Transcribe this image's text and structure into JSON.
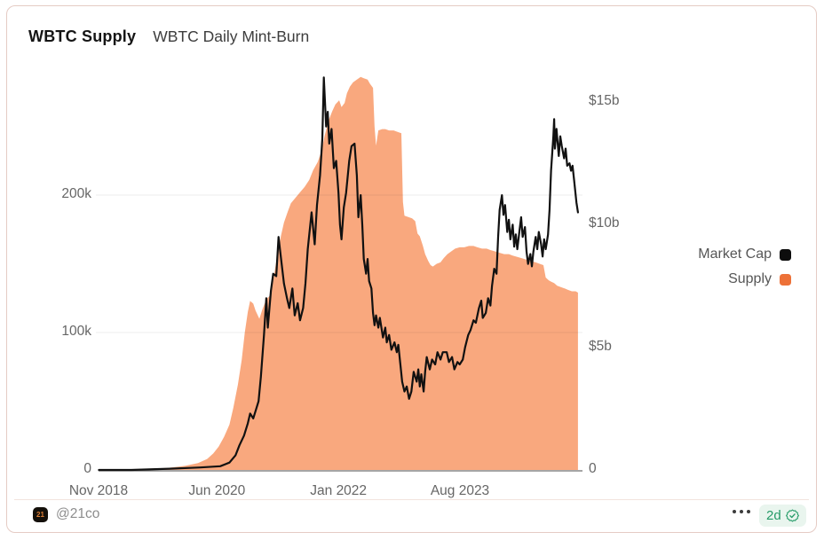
{
  "card": {
    "title": "WBTC Supply",
    "subtitle": "WBTC Daily Mint-Burn"
  },
  "legend": [
    {
      "label": "Market Cap",
      "color": "#0d0d0d"
    },
    {
      "label": "Supply",
      "color": "#ed7138"
    }
  ],
  "footer": {
    "avatar_text": "21",
    "handle": "@21co",
    "age": "2d"
  },
  "chart_data": {
    "type": "line+area",
    "title": "WBTC Daily Mint-Burn",
    "grid": "horizontal-left-axis-only",
    "legend_position": "right",
    "x_axis": {
      "kind": "time",
      "range_years": [
        2018.875,
        2025.12
      ],
      "ticks": [
        {
          "year": 2018.875,
          "label": "Nov 2018"
        },
        {
          "year": 2020.417,
          "label": "Jun 2020"
        },
        {
          "year": 2022.0,
          "label": "Jan 2022"
        },
        {
          "year": 2023.583,
          "label": "Aug 2023"
        }
      ]
    },
    "y_left": {
      "unit": "BTC (thousands)",
      "range": [
        0,
        286
      ],
      "ticks": [
        {
          "v": 0,
          "label": "0"
        },
        {
          "v": 100,
          "label": "100k"
        },
        {
          "v": 200,
          "label": "200k"
        }
      ]
    },
    "y_right": {
      "unit": "USD billions",
      "range": [
        0,
        16
      ],
      "ticks": [
        {
          "v": 0,
          "label": "0"
        },
        {
          "v": 5,
          "label": "$5b"
        },
        {
          "v": 10,
          "label": "$10b"
        },
        {
          "v": 15,
          "label": "$15b"
        }
      ]
    },
    "series": [
      {
        "name": "Supply",
        "type": "area",
        "axis": "left",
        "fill_color": "#f9a87e",
        "legend_color": "#ed7138",
        "points": [
          [
            2018.88,
            0.2
          ],
          [
            2019.42,
            0.7
          ],
          [
            2019.77,
            1.5
          ],
          [
            2020.0,
            3
          ],
          [
            2020.17,
            5
          ],
          [
            2020.29,
            8
          ],
          [
            2020.37,
            12
          ],
          [
            2020.44,
            17
          ],
          [
            2020.51,
            24
          ],
          [
            2020.58,
            33
          ],
          [
            2020.63,
            45
          ],
          [
            2020.69,
            62
          ],
          [
            2020.74,
            80
          ],
          [
            2020.78,
            100
          ],
          [
            2020.82,
            115
          ],
          [
            2020.85,
            123
          ],
          [
            2020.89,
            121
          ],
          [
            2020.92,
            116
          ],
          [
            2020.97,
            110
          ],
          [
            2021.01,
            117
          ],
          [
            2021.06,
            124
          ],
          [
            2021.11,
            127
          ],
          [
            2021.15,
            138
          ],
          [
            2021.2,
            155
          ],
          [
            2021.25,
            170
          ],
          [
            2021.29,
            180
          ],
          [
            2021.34,
            188
          ],
          [
            2021.38,
            194
          ],
          [
            2021.44,
            198
          ],
          [
            2021.5,
            202
          ],
          [
            2021.56,
            206
          ],
          [
            2021.62,
            211
          ],
          [
            2021.67,
            218
          ],
          [
            2021.73,
            224
          ],
          [
            2021.78,
            232
          ],
          [
            2021.82,
            243
          ],
          [
            2021.87,
            254
          ],
          [
            2021.92,
            261
          ],
          [
            2021.96,
            266
          ],
          [
            2022.01,
            269
          ],
          [
            2022.04,
            264
          ],
          [
            2022.08,
            267
          ],
          [
            2022.11,
            274
          ],
          [
            2022.15,
            279
          ],
          [
            2022.19,
            282
          ],
          [
            2022.24,
            284
          ],
          [
            2022.29,
            286
          ],
          [
            2022.33,
            285
          ],
          [
            2022.38,
            284
          ],
          [
            2022.41,
            281
          ],
          [
            2022.45,
            278
          ],
          [
            2022.47,
            250
          ],
          [
            2022.49,
            236
          ],
          [
            2022.52,
            247
          ],
          [
            2022.57,
            248
          ],
          [
            2022.61,
            248
          ],
          [
            2022.66,
            247
          ],
          [
            2022.72,
            247
          ],
          [
            2022.77,
            246
          ],
          [
            2022.82,
            245
          ],
          [
            2022.84,
            195
          ],
          [
            2022.86,
            185
          ],
          [
            2022.91,
            184
          ],
          [
            2022.96,
            183
          ],
          [
            2023.0,
            181
          ],
          [
            2023.03,
            172
          ],
          [
            2023.06,
            170
          ],
          [
            2023.1,
            163
          ],
          [
            2023.13,
            157
          ],
          [
            2023.17,
            152
          ],
          [
            2023.2,
            149
          ],
          [
            2023.23,
            148
          ],
          [
            2023.28,
            150
          ],
          [
            2023.33,
            151
          ],
          [
            2023.37,
            154
          ],
          [
            2023.42,
            157
          ],
          [
            2023.47,
            159
          ],
          [
            2023.52,
            161
          ],
          [
            2023.58,
            162
          ],
          [
            2023.64,
            162
          ],
          [
            2023.7,
            163
          ],
          [
            2023.76,
            163
          ],
          [
            2023.81,
            162
          ],
          [
            2023.87,
            161
          ],
          [
            2023.93,
            161
          ],
          [
            2023.98,
            160
          ],
          [
            2024.04,
            159
          ],
          [
            2024.1,
            158
          ],
          [
            2024.16,
            157
          ],
          [
            2024.22,
            157
          ],
          [
            2024.27,
            156
          ],
          [
            2024.33,
            155
          ],
          [
            2024.39,
            154
          ],
          [
            2024.45,
            153
          ],
          [
            2024.51,
            152
          ],
          [
            2024.57,
            151
          ],
          [
            2024.62,
            150
          ],
          [
            2024.67,
            149
          ],
          [
            2024.7,
            140
          ],
          [
            2024.74,
            138
          ],
          [
            2024.77,
            137
          ],
          [
            2024.81,
            136
          ],
          [
            2024.85,
            134
          ],
          [
            2024.9,
            133
          ],
          [
            2024.95,
            132
          ],
          [
            2024.99,
            131
          ],
          [
            2025.04,
            130
          ],
          [
            2025.09,
            130
          ],
          [
            2025.12,
            129
          ]
        ]
      },
      {
        "name": "Market Cap",
        "type": "line",
        "axis": "right",
        "line_color": "#111111",
        "legend_color": "#0d0d0d",
        "points": [
          [
            2018.88,
            0
          ],
          [
            2019.3,
            0
          ],
          [
            2019.8,
            0.05
          ],
          [
            2020.2,
            0.1
          ],
          [
            2020.46,
            0.15
          ],
          [
            2020.58,
            0.3
          ],
          [
            2020.66,
            0.6
          ],
          [
            2020.71,
            1.0
          ],
          [
            2020.77,
            1.4
          ],
          [
            2020.82,
            1.9
          ],
          [
            2020.85,
            2.3
          ],
          [
            2020.89,
            2.1
          ],
          [
            2020.92,
            2.4
          ],
          [
            2020.96,
            2.8
          ],
          [
            2020.99,
            3.8
          ],
          [
            2021.03,
            5.5
          ],
          [
            2021.06,
            7.0
          ],
          [
            2021.08,
            5.8
          ],
          [
            2021.12,
            7.3
          ],
          [
            2021.15,
            8.0
          ],
          [
            2021.19,
            7.9
          ],
          [
            2021.22,
            9.5
          ],
          [
            2021.26,
            8.4
          ],
          [
            2021.29,
            7.6
          ],
          [
            2021.33,
            7.0
          ],
          [
            2021.36,
            6.6
          ],
          [
            2021.4,
            7.4
          ],
          [
            2021.43,
            6.3
          ],
          [
            2021.47,
            6.8
          ],
          [
            2021.5,
            6.1
          ],
          [
            2021.54,
            6.6
          ],
          [
            2021.57,
            7.6
          ],
          [
            2021.6,
            9.0
          ],
          [
            2021.65,
            10.5
          ],
          [
            2021.69,
            9.2
          ],
          [
            2021.72,
            10.8
          ],
          [
            2021.76,
            12.0
          ],
          [
            2021.79,
            13.5
          ],
          [
            2021.81,
            16.0
          ],
          [
            2021.84,
            14.0
          ],
          [
            2021.86,
            14.6
          ],
          [
            2021.88,
            13.3
          ],
          [
            2021.91,
            13.9
          ],
          [
            2021.94,
            12.3
          ],
          [
            2021.97,
            12.6
          ],
          [
            2022.0,
            11.3
          ],
          [
            2022.02,
            10.0
          ],
          [
            2022.04,
            9.4
          ],
          [
            2022.07,
            10.7
          ],
          [
            2022.1,
            11.3
          ],
          [
            2022.14,
            12.6
          ],
          [
            2022.17,
            13.2
          ],
          [
            2022.21,
            13.3
          ],
          [
            2022.24,
            12.0
          ],
          [
            2022.26,
            10.3
          ],
          [
            2022.29,
            11.2
          ],
          [
            2022.31,
            10.0
          ],
          [
            2022.33,
            8.6
          ],
          [
            2022.36,
            8.0
          ],
          [
            2022.38,
            8.6
          ],
          [
            2022.4,
            7.7
          ],
          [
            2022.43,
            7.4
          ],
          [
            2022.45,
            6.4
          ],
          [
            2022.47,
            5.9
          ],
          [
            2022.49,
            6.3
          ],
          [
            2022.52,
            5.8
          ],
          [
            2022.54,
            6.2
          ],
          [
            2022.58,
            5.4
          ],
          [
            2022.61,
            5.8
          ],
          [
            2022.63,
            5.2
          ],
          [
            2022.66,
            5.5
          ],
          [
            2022.69,
            4.9
          ],
          [
            2022.73,
            5.2
          ],
          [
            2022.76,
            4.8
          ],
          [
            2022.78,
            5.1
          ],
          [
            2022.81,
            4.2
          ],
          [
            2022.83,
            3.6
          ],
          [
            2022.86,
            3.2
          ],
          [
            2022.89,
            3.4
          ],
          [
            2022.92,
            2.9
          ],
          [
            2022.95,
            3.2
          ],
          [
            2022.98,
            4.0
          ],
          [
            2023.02,
            3.6
          ],
          [
            2023.04,
            4.1
          ],
          [
            2023.06,
            3.4
          ],
          [
            2023.08,
            3.9
          ],
          [
            2023.11,
            3.2
          ],
          [
            2023.13,
            4.0
          ],
          [
            2023.15,
            4.6
          ],
          [
            2023.19,
            4.1
          ],
          [
            2023.22,
            4.5
          ],
          [
            2023.26,
            4.3
          ],
          [
            2023.29,
            4.8
          ],
          [
            2023.33,
            4.5
          ],
          [
            2023.36,
            4.8
          ],
          [
            2023.41,
            4.8
          ],
          [
            2023.44,
            4.4
          ],
          [
            2023.48,
            4.6
          ],
          [
            2023.51,
            4.1
          ],
          [
            2023.55,
            4.4
          ],
          [
            2023.58,
            4.3
          ],
          [
            2023.62,
            4.5
          ],
          [
            2023.65,
            5.0
          ],
          [
            2023.69,
            5.5
          ],
          [
            2023.72,
            5.7
          ],
          [
            2023.76,
            6.1
          ],
          [
            2023.79,
            6.0
          ],
          [
            2023.83,
            6.6
          ],
          [
            2023.86,
            6.9
          ],
          [
            2023.88,
            6.2
          ],
          [
            2023.92,
            6.4
          ],
          [
            2023.95,
            7.0
          ],
          [
            2023.98,
            6.7
          ],
          [
            2024.0,
            7.5
          ],
          [
            2024.03,
            8.2
          ],
          [
            2024.06,
            8.0
          ],
          [
            2024.08,
            9.5
          ],
          [
            2024.1,
            10.6
          ],
          [
            2024.13,
            11.2
          ],
          [
            2024.15,
            10.4
          ],
          [
            2024.17,
            10.8
          ],
          [
            2024.2,
            9.7
          ],
          [
            2024.22,
            10.2
          ],
          [
            2024.24,
            9.4
          ],
          [
            2024.27,
            10.0
          ],
          [
            2024.29,
            9.1
          ],
          [
            2024.31,
            9.6
          ],
          [
            2024.33,
            9.0
          ],
          [
            2024.36,
            9.8
          ],
          [
            2024.38,
            10.3
          ],
          [
            2024.4,
            9.5
          ],
          [
            2024.43,
            9.9
          ],
          [
            2024.45,
            8.9
          ],
          [
            2024.47,
            8.4
          ],
          [
            2024.5,
            8.8
          ],
          [
            2024.52,
            8.3
          ],
          [
            2024.54,
            8.9
          ],
          [
            2024.57,
            9.5
          ],
          [
            2024.59,
            9.0
          ],
          [
            2024.61,
            9.7
          ],
          [
            2024.64,
            9.2
          ],
          [
            2024.66,
            8.7
          ],
          [
            2024.68,
            9.4
          ],
          [
            2024.7,
            9.0
          ],
          [
            2024.73,
            9.6
          ],
          [
            2024.75,
            10.6
          ],
          [
            2024.77,
            12.2
          ],
          [
            2024.8,
            13.6
          ],
          [
            2024.81,
            14.3
          ],
          [
            2024.82,
            13.1
          ],
          [
            2024.84,
            13.9
          ],
          [
            2024.87,
            12.8
          ],
          [
            2024.89,
            13.6
          ],
          [
            2024.91,
            13.2
          ],
          [
            2024.94,
            12.7
          ],
          [
            2024.96,
            13.1
          ],
          [
            2024.98,
            12.4
          ],
          [
            2025.01,
            12.5
          ],
          [
            2025.03,
            12.2
          ],
          [
            2025.05,
            12.4
          ],
          [
            2025.07,
            11.8
          ],
          [
            2025.1,
            10.9
          ],
          [
            2025.12,
            10.5
          ]
        ]
      }
    ]
  }
}
